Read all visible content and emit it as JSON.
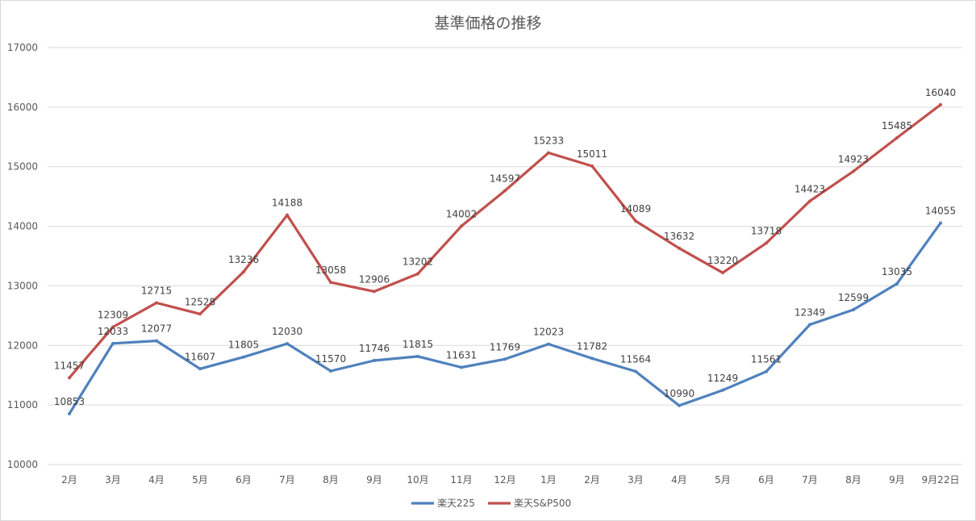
{
  "chart_data": {
    "type": "line",
    "title": "基準価格の推移",
    "categories": [
      "2月",
      "3月",
      "4月",
      "5月",
      "6月",
      "7月",
      "8月",
      "9月",
      "10月",
      "11月",
      "12月",
      "1月",
      "2月",
      "3月",
      "4月",
      "5月",
      "6月",
      "7月",
      "8月",
      "9月",
      "9月22日"
    ],
    "ylim": [
      10000,
      17000
    ],
    "yticks": [
      10000,
      11000,
      12000,
      13000,
      14000,
      15000,
      16000,
      17000
    ],
    "grid": true,
    "legend_position": "bottom",
    "series": [
      {
        "name": "楽天225",
        "color": "#4f81bd",
        "values": [
          10853,
          12033,
          12077,
          11607,
          11805,
          12030,
          11570,
          11746,
          11815,
          11631,
          11769,
          12023,
          11782,
          11564,
          10990,
          11249,
          11561,
          12349,
          12599,
          13035,
          14055
        ]
      },
      {
        "name": "楽天S&P500",
        "color": "#c0504d",
        "values": [
          11457,
          12309,
          12715,
          12528,
          13236,
          14188,
          13058,
          12906,
          13202,
          14002,
          14597,
          15233,
          15011,
          14089,
          13632,
          13220,
          13718,
          14423,
          14923,
          15485,
          16040
        ]
      }
    ]
  }
}
